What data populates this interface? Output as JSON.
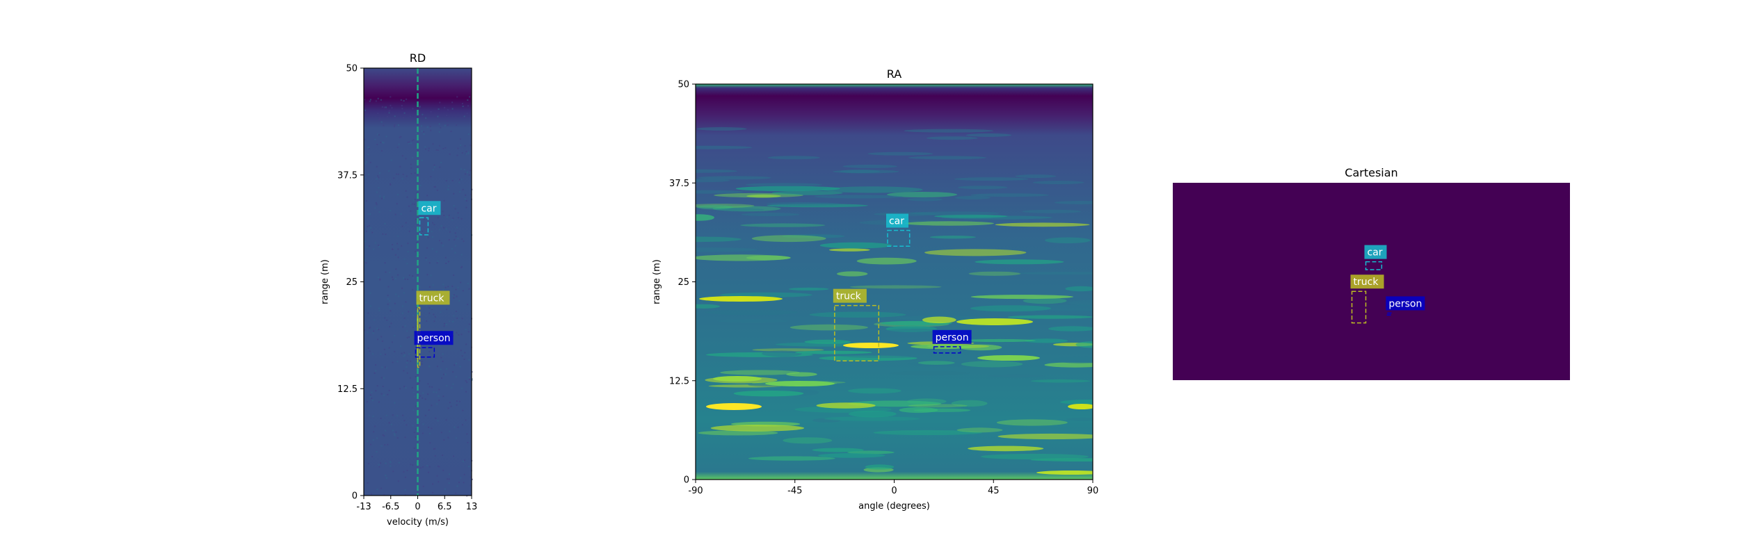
{
  "chart_data": [
    {
      "type": "heatmap",
      "title": "RD",
      "xlabel": "velocity (m/s)",
      "ylabel": "range (m)",
      "xlim": [
        -13,
        13
      ],
      "ylim": [
        0,
        50
      ],
      "x_ticks": [
        "-13",
        "-6.5",
        "0",
        "6.5",
        "13"
      ],
      "y_ticks": [
        "0",
        "12.5",
        "25",
        "37.5",
        "50"
      ],
      "colormap": "viridis",
      "annotations": [
        {
          "label": "car",
          "x": [
            0.5,
            2.5
          ],
          "y": [
            30.5,
            32.5
          ],
          "color": "#17becf"
        },
        {
          "label": "truck",
          "x": [
            0,
            0.5
          ],
          "y": [
            15,
            22
          ],
          "color": "#bcbd22"
        },
        {
          "label": "person",
          "x": [
            -0.5,
            4
          ],
          "y": [
            16.2,
            17.3
          ],
          "color": "#0000cc"
        }
      ]
    },
    {
      "type": "heatmap",
      "title": "RA",
      "xlabel": "angle (degrees)",
      "ylabel": "range (m)",
      "xlim": [
        -90,
        90
      ],
      "ylim": [
        0,
        50
      ],
      "x_ticks": [
        "-90",
        "-45",
        "0",
        "45",
        "90"
      ],
      "y_ticks": [
        "0",
        "12.5",
        "25",
        "37.5",
        "50"
      ],
      "colormap": "viridis",
      "annotations": [
        {
          "label": "car",
          "x": [
            -3,
            7
          ],
          "y": [
            29.5,
            31.5
          ],
          "color": "#17becf"
        },
        {
          "label": "truck",
          "x": [
            -27,
            -7
          ],
          "y": [
            15,
            22
          ],
          "color": "#bcbd22"
        },
        {
          "label": "person",
          "x": [
            18,
            30
          ],
          "y": [
            16,
            16.8
          ],
          "color": "#0000cc"
        }
      ]
    },
    {
      "type": "heatmap",
      "title": "Cartesian",
      "colormap": "viridis",
      "background": "#440154",
      "annotations": [
        {
          "label": "car",
          "x": [
            0.486,
            0.526
          ],
          "y": [
            0.4,
            0.44
          ],
          "color": "#17becf"
        },
        {
          "label": "truck",
          "x": [
            0.451,
            0.486
          ],
          "y": [
            0.55,
            0.71
          ],
          "color": "#bcbd22"
        },
        {
          "label": "person",
          "x": [
            0.54,
            0.55
          ],
          "y": [
            0.66,
            0.67
          ],
          "color": "#0000cc"
        }
      ]
    }
  ]
}
